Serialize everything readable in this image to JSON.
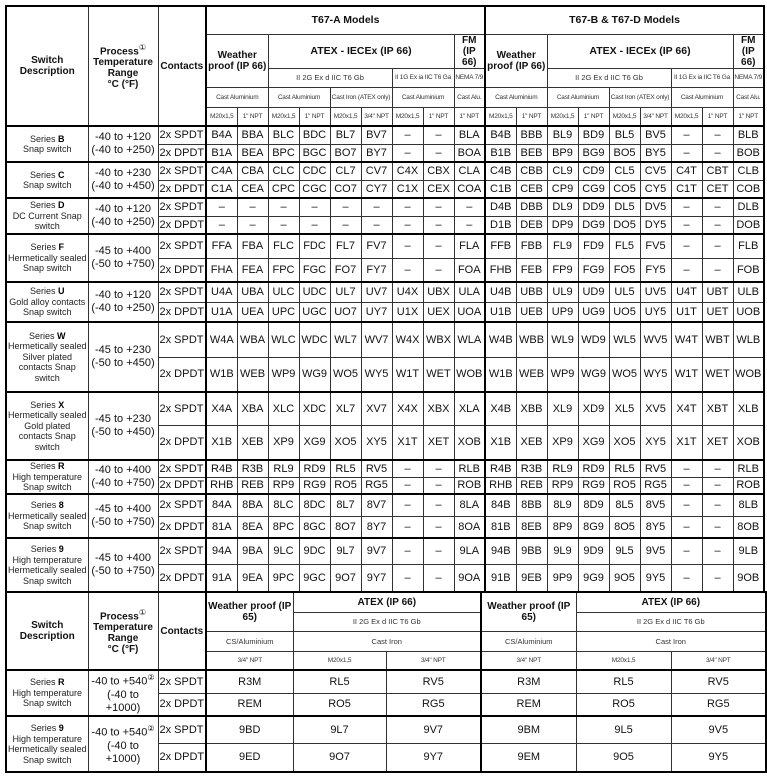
{
  "top": {
    "headers": {
      "switch_description": "Switch Description",
      "process": "Process",
      "footnote1": "①",
      "temperature_range": "Temperature Range",
      "units": "°C (°F)",
      "contacts": "Contacts"
    },
    "block_a": {
      "title": "T67-A Models",
      "weather": "Weather proof (IP 66)",
      "atex": "ATEX - IECEx (IP 66)",
      "fm": "FM (IP 66)",
      "atex_2g": "II 2G Ex d IIC T6 Gb",
      "atex_1g": "II 1G Ex ia IIC T6 Ga",
      "nema": "NEMA 7/9",
      "materials": [
        "Cast Aluminium",
        "Cast Aluminium",
        "Cast Iron (ATEX only)",
        "Cast Aluminium",
        "Cast Alu."
      ],
      "threads": [
        "M20x1,5",
        "1\" NPT",
        "M20x1,5",
        "1\" NPT",
        "M20x1,5",
        "3/4\" NPT",
        "M20x1,5",
        "1\" NPT",
        "1\" NPT"
      ]
    },
    "block_b": {
      "title": "T67-B & T67-D Models",
      "weather": "Weather proof (IP 66)",
      "atex": "ATEX - IECEx (IP 66)",
      "fm": "FM (IP 66)",
      "atex_2g": "II 2G Ex d IIC T6 Gb",
      "atex_1g": "II 1G Ex ia IIC T6 Ga",
      "nema": "NEMA 7/9",
      "materials": [
        "Cast Aluminium",
        "Cast Aluminium",
        "Cast Iron (ATEX only)",
        "Cast Aluminium",
        "Cast Alu."
      ],
      "threads": [
        "M20x1,5",
        "1\" NPT",
        "M20x1,5",
        "1\" NPT",
        "M20x1,5",
        "3/4\" NPT",
        "M20x1,5",
        "1\" NPT",
        "1\" NPT"
      ]
    },
    "series": [
      {
        "label": "Series",
        "letter": "B",
        "desc": "Snap switch",
        "temp_c": "-40 to +120",
        "temp_f": "(-40 to +250)",
        "rows": [
          {
            "contacts": "2x SPDT",
            "codes": [
              "B4A",
              "BBA",
              "BLC",
              "BDC",
              "BL7",
              "BV7",
              "–",
              "–",
              "BLA",
              "B4B",
              "BBB",
              "BL9",
              "BD9",
              "BL5",
              "BV5",
              "–",
              "–",
              "BLB"
            ]
          },
          {
            "contacts": "2x DPDT",
            "codes": [
              "B1A",
              "BEA",
              "BPC",
              "BGC",
              "BO7",
              "BY7",
              "–",
              "–",
              "BOA",
              "B1B",
              "BEB",
              "BP9",
              "BG9",
              "BO5",
              "BY5",
              "–",
              "–",
              "BOB"
            ]
          }
        ]
      },
      {
        "label": "Series",
        "letter": "C",
        "desc": "Snap switch",
        "temp_c": "-40 to +230",
        "temp_f": "(-40 to +450)",
        "rows": [
          {
            "contacts": "2x SPDT",
            "codes": [
              "C4A",
              "CBA",
              "CLC",
              "CDC",
              "CL7",
              "CV7",
              "C4X",
              "CBX",
              "CLA",
              "C4B",
              "CBB",
              "CL9",
              "CD9",
              "CL5",
              "CV5",
              "C4T",
              "CBT",
              "CLB"
            ]
          },
          {
            "contacts": "2x DPDT",
            "codes": [
              "C1A",
              "CEA",
              "CPC",
              "CGC",
              "CO7",
              "CY7",
              "C1X",
              "CEX",
              "COA",
              "C1B",
              "CEB",
              "CP9",
              "CG9",
              "CO5",
              "CY5",
              "C1T",
              "CET",
              "COB"
            ]
          }
        ]
      },
      {
        "label": "Series",
        "letter": "D",
        "desc": "DC Current Snap switch",
        "temp_c": "-40 to +120",
        "temp_f": "(-40 to +250)",
        "rows": [
          {
            "contacts": "2x SPDT",
            "codes": [
              "–",
              "–",
              "–",
              "–",
              "–",
              "–",
              "–",
              "–",
              "–",
              "D4B",
              "DBB",
              "DL9",
              "DD9",
              "DL5",
              "DV5",
              "–",
              "–",
              "DLB"
            ]
          },
          {
            "contacts": "2x DPDT",
            "codes": [
              "–",
              "–",
              "–",
              "–",
              "–",
              "–",
              "–",
              "–",
              "–",
              "D1B",
              "DEB",
              "DP9",
              "DG9",
              "DO5",
              "DY5",
              "–",
              "–",
              "DOB"
            ]
          }
        ]
      },
      {
        "label": "Series",
        "letter": "F",
        "desc": "Hermetically sealed Snap switch",
        "temp_c": "-45 to +400",
        "temp_f": "(-50 to +750)",
        "rows": [
          {
            "contacts": "2x SPDT",
            "codes": [
              "FFA",
              "FBA",
              "FLC",
              "FDC",
              "FL7",
              "FV7",
              "–",
              "–",
              "FLA",
              "FFB",
              "FBB",
              "FL9",
              "FD9",
              "FL5",
              "FV5",
              "–",
              "–",
              "FLB"
            ]
          },
          {
            "contacts": "2x DPDT",
            "codes": [
              "FHA",
              "FEA",
              "FPC",
              "FGC",
              "FO7",
              "FY7",
              "–",
              "–",
              "FOA",
              "FHB",
              "FEB",
              "FP9",
              "FG9",
              "FO5",
              "FY5",
              "–",
              "–",
              "FOB"
            ]
          }
        ]
      },
      {
        "label": "Series",
        "letter": "U",
        "desc": "Gold alloy contacts Snap switch",
        "temp_c": "-40 to +120",
        "temp_f": "(-40 to +250)",
        "rows": [
          {
            "contacts": "2x SPDT",
            "codes": [
              "U4A",
              "UBA",
              "ULC",
              "UDC",
              "UL7",
              "UV7",
              "U4X",
              "UBX",
              "ULA",
              "U4B",
              "UBB",
              "UL9",
              "UD9",
              "UL5",
              "UV5",
              "U4T",
              "UBT",
              "ULB"
            ]
          },
          {
            "contacts": "2x DPDT",
            "codes": [
              "U1A",
              "UEA",
              "UPC",
              "UGC",
              "UO7",
              "UY7",
              "U1X",
              "UEX",
              "UOA",
              "U1B",
              "UEB",
              "UP9",
              "UG9",
              "UO5",
              "UY5",
              "U1T",
              "UET",
              "UOB"
            ]
          }
        ]
      },
      {
        "label": "Series",
        "letter": "W",
        "desc": "Hermetically sealed Silver plated contacts Snap switch",
        "temp_c": "-45 to +230",
        "temp_f": "(-50 to +450)",
        "rows": [
          {
            "contacts": "2x SPDT",
            "codes": [
              "W4A",
              "WBA",
              "WLC",
              "WDC",
              "WL7",
              "WV7",
              "W4X",
              "WBX",
              "WLA",
              "W4B",
              "WBB",
              "WL9",
              "WD9",
              "WL5",
              "WV5",
              "W4T",
              "WBT",
              "WLB"
            ]
          },
          {
            "contacts": "2x DPDT",
            "codes": [
              "W1B",
              "WEB",
              "WP9",
              "WG9",
              "WO5",
              "WY5",
              "W1T",
              "WET",
              "WOB",
              "W1B",
              "WEB",
              "WP9",
              "WG9",
              "WO5",
              "WY5",
              "W1T",
              "WET",
              "WOB"
            ]
          }
        ]
      },
      {
        "label": "Series",
        "letter": "X",
        "desc": "Hermetically sealed Gold plated contacts Snap switch",
        "temp_c": "-45 to +230",
        "temp_f": "(-50 to +450)",
        "rows": [
          {
            "contacts": "2x SPDT",
            "codes": [
              "X4A",
              "XBA",
              "XLC",
              "XDC",
              "XL7",
              "XV7",
              "X4X",
              "XBX",
              "XLA",
              "X4B",
              "XBB",
              "XL9",
              "XD9",
              "XL5",
              "XV5",
              "X4T",
              "XBT",
              "XLB"
            ]
          },
          {
            "contacts": "2x DPDT",
            "codes": [
              "X1B",
              "XEB",
              "XP9",
              "XG9",
              "XO5",
              "XY5",
              "X1T",
              "XET",
              "XOB",
              "X1B",
              "XEB",
              "XP9",
              "XG9",
              "XO5",
              "XY5",
              "X1T",
              "XET",
              "XOB"
            ]
          }
        ]
      },
      {
        "label": "Series",
        "letter": "R",
        "desc": "High temperature Snap switch",
        "temp_c": "-40 to +400",
        "temp_f": "(-40 to +750)",
        "rows": [
          {
            "contacts": "2x SPDT",
            "codes": [
              "R4B",
              "R3B",
              "RL9",
              "RD9",
              "RL5",
              "RV5",
              "–",
              "–",
              "RLB",
              "R4B",
              "R3B",
              "RL9",
              "RD9",
              "RL5",
              "RV5",
              "–",
              "–",
              "RLB"
            ]
          },
          {
            "contacts": "2x DPDT",
            "codes": [
              "RHB",
              "REB",
              "RP9",
              "RG9",
              "RO5",
              "RG5",
              "–",
              "–",
              "ROB",
              "RHB",
              "REB",
              "RP9",
              "RG9",
              "RO5",
              "RG5",
              "–",
              "–",
              "ROB"
            ]
          }
        ]
      },
      {
        "label": "Series",
        "letter": "8",
        "desc": "Hermetically sealed Snap switch",
        "temp_c": "-45 to +400",
        "temp_f": "(-50 to +750)",
        "rows": [
          {
            "contacts": "2x SPDT",
            "codes": [
              "84A",
              "8BA",
              "8LC",
              "8DC",
              "8L7",
              "8V7",
              "–",
              "–",
              "8LA",
              "84B",
              "8BB",
              "8L9",
              "8D9",
              "8L5",
              "8V5",
              "–",
              "–",
              "8LB"
            ]
          },
          {
            "contacts": "2x DPDT",
            "codes": [
              "81A",
              "8EA",
              "8PC",
              "8GC",
              "8O7",
              "8Y7",
              "–",
              "–",
              "8OA",
              "81B",
              "8EB",
              "8P9",
              "8G9",
              "8O5",
              "8Y5",
              "–",
              "–",
              "8OB"
            ]
          }
        ]
      },
      {
        "label": "Series",
        "letter": "9",
        "desc": "High temperature Hermetically sealed Snap switch",
        "temp_c": "-45 to +400",
        "temp_f": "(-50 to +750)",
        "rows": [
          {
            "contacts": "2x SPDT",
            "codes": [
              "94A",
              "9BA",
              "9LC",
              "9DC",
              "9L7",
              "9V7",
              "–",
              "–",
              "9LA",
              "94B",
              "9BB",
              "9L9",
              "9D9",
              "9L5",
              "9V5",
              "–",
              "–",
              "9LB"
            ]
          },
          {
            "contacts": "2x DPDT",
            "codes": [
              "91A",
              "9EA",
              "9PC",
              "9GC",
              "9O7",
              "9Y7",
              "–",
              "–",
              "9OA",
              "91B",
              "9EB",
              "9P9",
              "9G9",
              "9O5",
              "9Y5",
              "–",
              "–",
              "9OB"
            ]
          }
        ]
      }
    ]
  },
  "bottom": {
    "headers": {
      "switch_description": "Switch Description",
      "process": "Process",
      "footnote1": "①",
      "temperature_range": "Temperature Range",
      "units": "°C (°F)",
      "contacts": "Contacts"
    },
    "block": {
      "weather": "Weather proof (IP 65)",
      "atex": "ATEX (IP 66)",
      "atex_2g": "II 2G Ex d IIC T6 Gb",
      "weather_material": "CS/Aluminium",
      "atex_material": "Cast Iron",
      "threads": [
        "3/4\" NPT",
        "M20x1,5",
        "3/4\" NPT"
      ]
    },
    "series": [
      {
        "label": "Series",
        "letter": "R",
        "desc": "High temperature Snap switch",
        "temp_c": "-40 to +540",
        "footnote": "②",
        "temp_f": "(-40 to +1000)",
        "rows": [
          {
            "contacts": "2x SPDT",
            "codes": [
              "R3M",
              "RL5",
              "RV5",
              "R3M",
              "RL5",
              "RV5"
            ]
          },
          {
            "contacts": "2x DPDT",
            "codes": [
              "REM",
              "RO5",
              "RG5",
              "REM",
              "RO5",
              "RG5"
            ]
          }
        ]
      },
      {
        "label": "Series",
        "letter": "9",
        "desc": "High temperature Hermetically sealed Snap switch",
        "temp_c": "-40 to +540",
        "footnote": "②",
        "temp_f": "(-40 to +1000)",
        "rows": [
          {
            "contacts": "2x SPDT",
            "codes": [
              "9BD",
              "9L7",
              "9V7",
              "9BM",
              "9L5",
              "9V5"
            ]
          },
          {
            "contacts": "2x DPDT",
            "codes": [
              "9ED",
              "9O7",
              "9Y7",
              "9EM",
              "9O5",
              "9Y5"
            ]
          }
        ]
      }
    ]
  }
}
